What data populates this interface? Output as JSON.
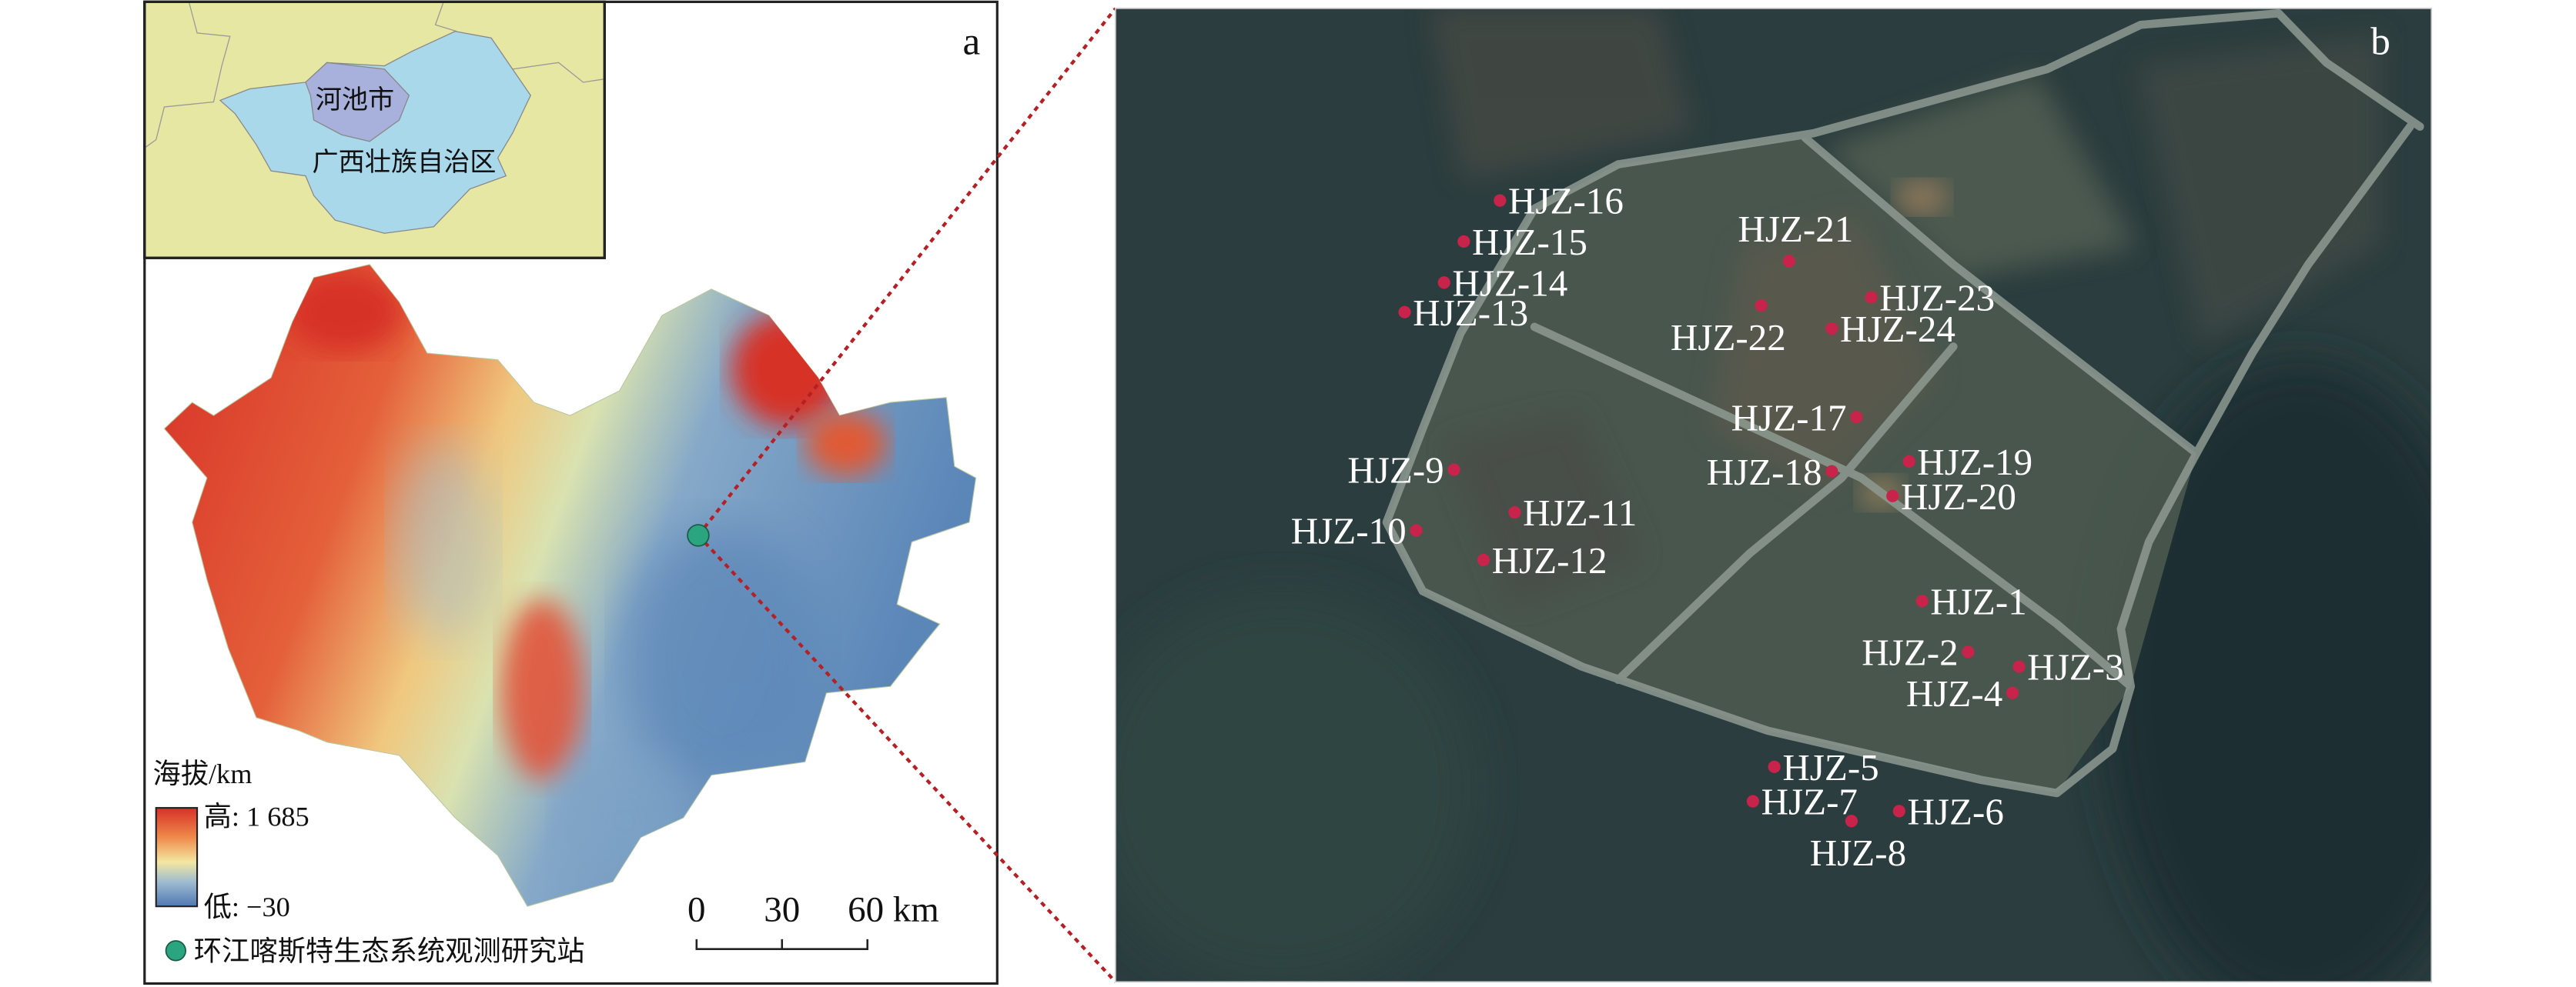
{
  "panel_a": {
    "letter": "a",
    "inset": {
      "city_label": "河池市",
      "province_label": "广西壮族自治区",
      "colors": {
        "background": "#e6e7a3",
        "province": "#a9d8ea",
        "city": "#a7b1dc"
      }
    },
    "legend": {
      "title": "海拔/km",
      "high_label": "高: 1 685",
      "low_label": "低: −30",
      "station_label": "环江喀斯特生态系统观测研究站",
      "station_color": "#2aa57f",
      "ramp_colors": [
        "#d73027",
        "#f08a4b",
        "#f3e7a1",
        "#9fbcd0",
        "#4f78b3"
      ]
    },
    "scale_bar": {
      "ticks": [
        "0",
        "30",
        "60 km"
      ]
    }
  },
  "panel_b": {
    "letter": "b",
    "point_color": "#c8234a",
    "points": [
      "HJZ-1",
      "HJZ-2",
      "HJZ-3",
      "HJZ-4",
      "HJZ-5",
      "HJZ-6",
      "HJZ-7",
      "HJZ-8",
      "HJZ-9",
      "HJZ-10",
      "HJZ-11",
      "HJZ-12",
      "HJZ-13",
      "HJZ-14",
      "HJZ-15",
      "HJZ-16",
      "HJZ-17",
      "HJZ-18",
      "HJZ-19",
      "HJZ-20",
      "HJZ-21",
      "HJZ-22",
      "HJZ-23",
      "HJZ-24"
    ]
  }
}
